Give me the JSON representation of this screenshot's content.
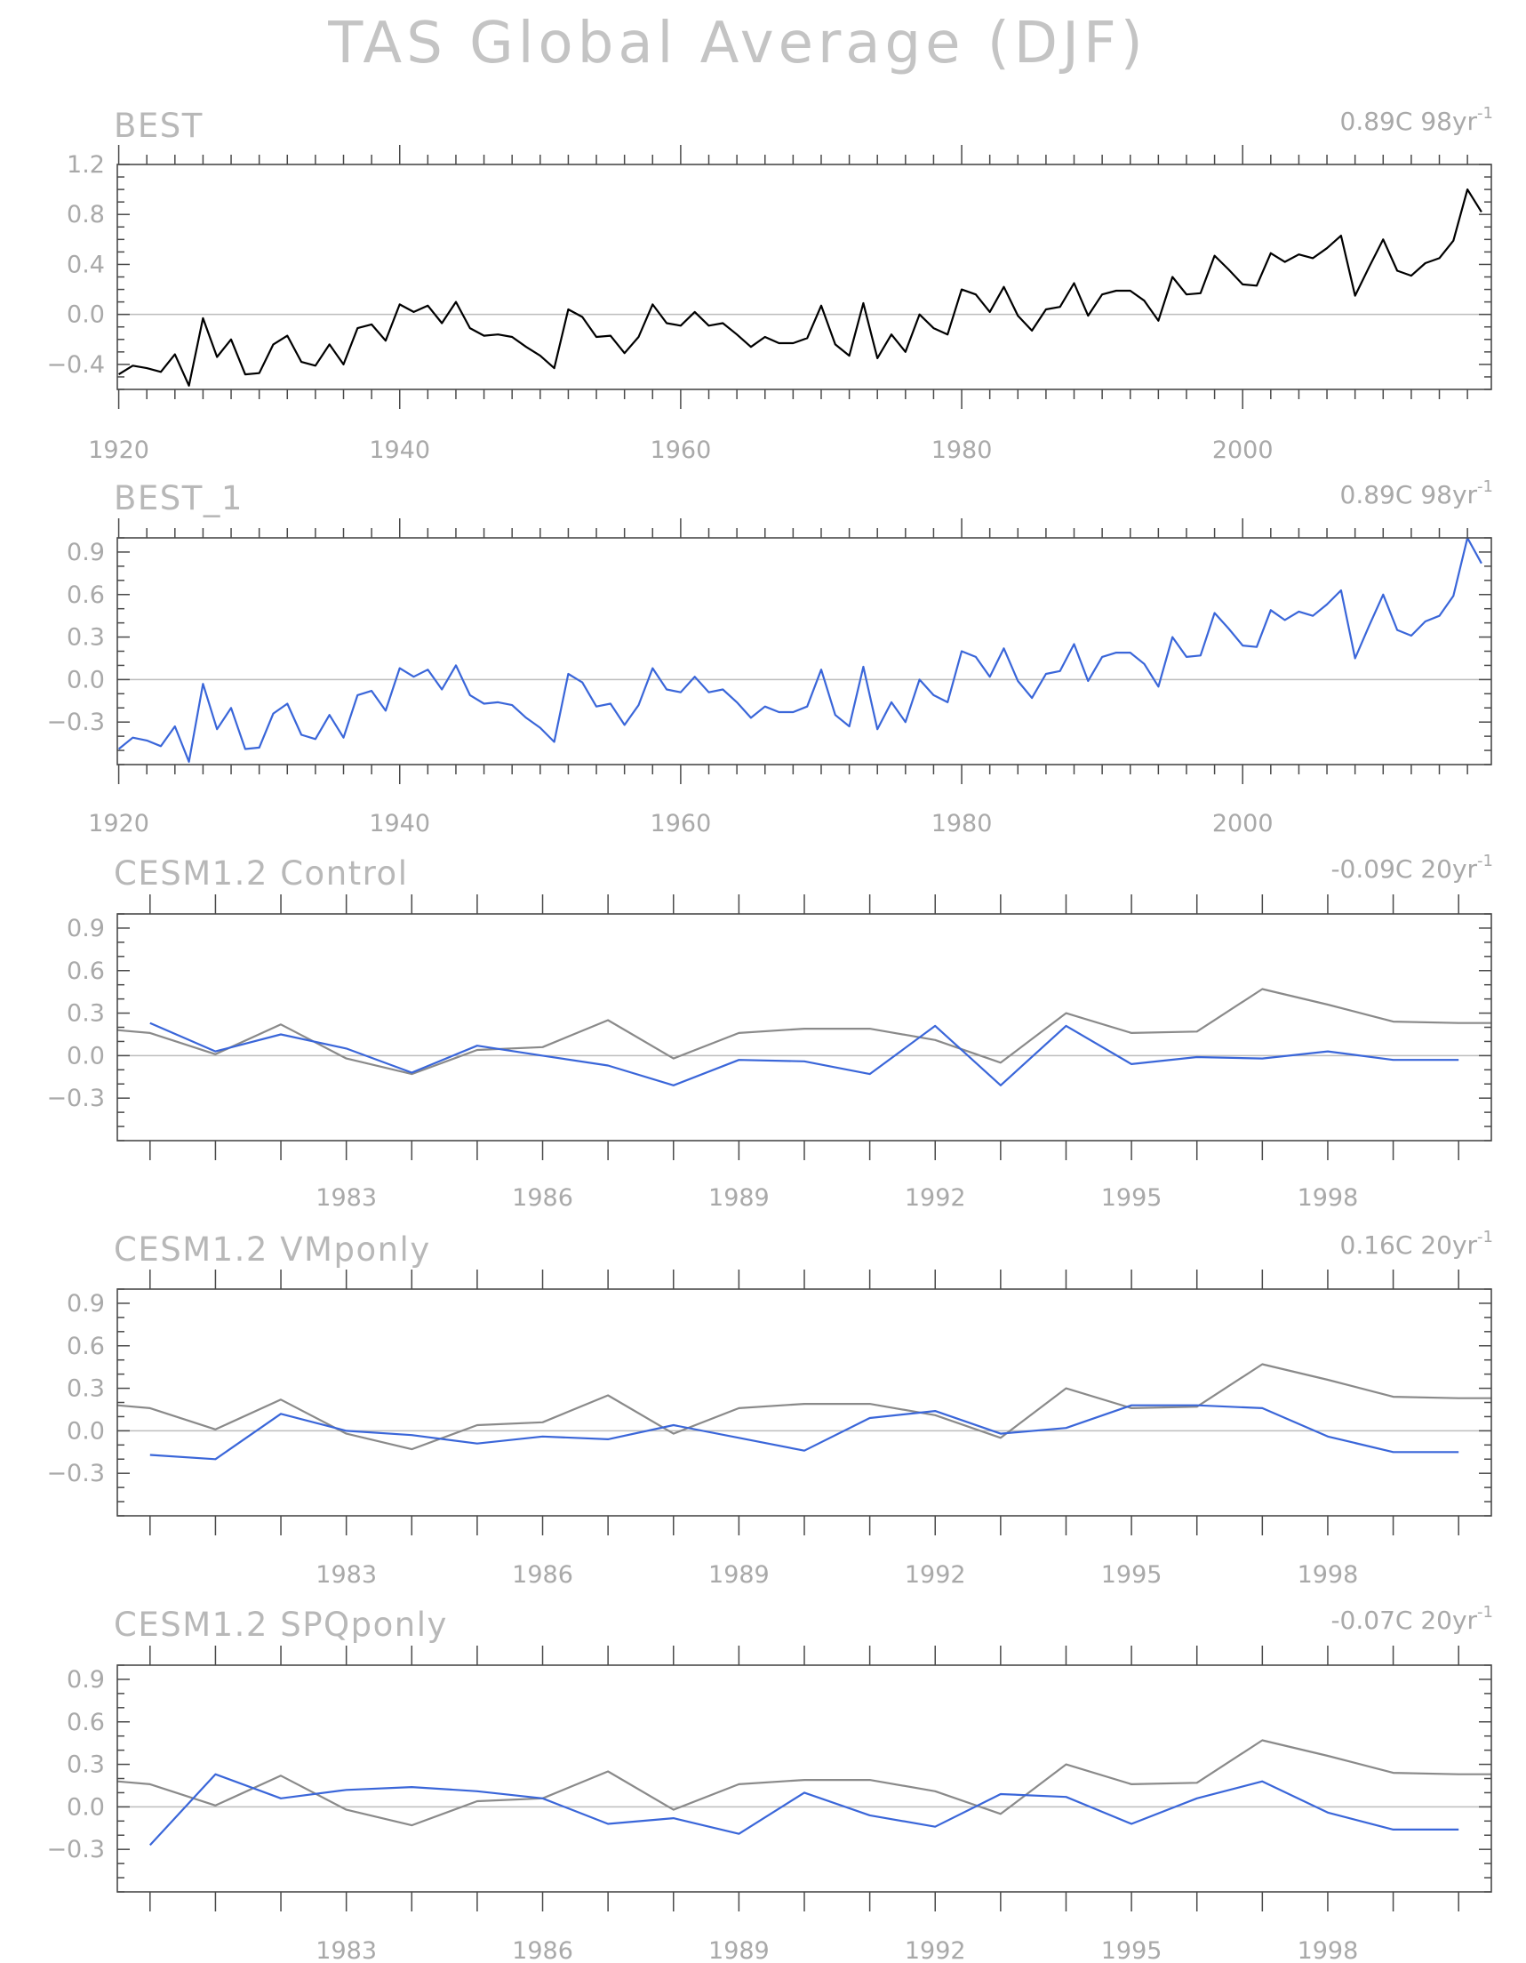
{
  "title": "TAS Global Average (DJF)",
  "colors": {
    "frame": "#4a4a4a",
    "zero_line": "#bdbdbd",
    "observed_black": "#000000",
    "observed_gray": "#8a8a8a",
    "model_blue": "#3a66d9",
    "text": "#a9a9a9"
  },
  "chart_data": [
    {
      "type": "line",
      "title": "BEST",
      "trend": "0.89C 98yr",
      "trend_unit_exponent": "-1",
      "x_range": [
        1919.9,
        2017.7
      ],
      "ylim": [
        -0.6,
        1.2
      ],
      "yticks": [
        -0.4,
        0.0,
        0.4,
        0.8,
        1.2
      ],
      "ytick_labels": [
        "-0.4",
        "0.0",
        "0.4",
        "0.8",
        "1.2"
      ],
      "xticks": [
        1920,
        1940,
        1960,
        1980,
        2000
      ],
      "xtick_labels": [
        "1920",
        "1940",
        "1960",
        "1980",
        "2000"
      ],
      "x_minor_step": 2,
      "y_minor_step": 0.1,
      "series": [
        {
          "color": "#000000",
          "x_start": 1920,
          "values": [
            -0.48,
            -0.41,
            -0.43,
            -0.46,
            -0.32,
            -0.57,
            -0.03,
            -0.34,
            -0.2,
            -0.48,
            -0.47,
            -0.24,
            -0.17,
            -0.38,
            -0.41,
            -0.24,
            -0.4,
            -0.11,
            -0.08,
            -0.21,
            0.08,
            0.02,
            0.07,
            -0.07,
            0.1,
            -0.11,
            -0.17,
            -0.16,
            -0.18,
            -0.26,
            -0.33,
            -0.43,
            0.04,
            -0.02,
            -0.18,
            -0.17,
            -0.31,
            -0.18,
            0.08,
            -0.07,
            -0.09,
            0.02,
            -0.09,
            -0.07,
            -0.16,
            -0.26,
            -0.18,
            -0.23,
            -0.23,
            -0.19,
            0.07,
            -0.24,
            -0.33,
            0.09,
            -0.35,
            -0.16,
            -0.3,
            0.0,
            -0.11,
            -0.16,
            0.2,
            0.16,
            0.02,
            0.22,
            -0.01,
            -0.13,
            0.04,
            0.06,
            0.25,
            -0.01,
            0.16,
            0.19,
            0.19,
            0.11,
            -0.05,
            0.3,
            0.16,
            0.17,
            0.47,
            0.36,
            0.24,
            0.23,
            0.49,
            0.42,
            0.48,
            0.45,
            0.53,
            0.63,
            0.15,
            0.38,
            0.6,
            0.35,
            0.31,
            0.41,
            0.45,
            0.59,
            1.0,
            0.82
          ]
        }
      ]
    },
    {
      "type": "line",
      "title": "BEST_1",
      "trend": "0.89C 98yr",
      "trend_unit_exponent": "-1",
      "x_range": [
        1919.9,
        2017.7
      ],
      "ylim": [
        -0.6,
        1.0
      ],
      "yticks": [
        -0.3,
        0.0,
        0.3,
        0.6,
        0.9
      ],
      "ytick_labels": [
        "-0.3",
        "0.0",
        "0.3",
        "0.6",
        "0.9"
      ],
      "xticks": [
        1920,
        1940,
        1960,
        1980,
        2000
      ],
      "xtick_labels": [
        "1920",
        "1940",
        "1960",
        "1980",
        "2000"
      ],
      "x_minor_step": 2,
      "y_minor_step": 0.1,
      "series": [
        {
          "color": "#3a66d9",
          "x_start": 1920,
          "values": [
            -0.49,
            -0.41,
            -0.43,
            -0.47,
            -0.33,
            -0.58,
            -0.03,
            -0.35,
            -0.2,
            -0.49,
            -0.48,
            -0.24,
            -0.17,
            -0.39,
            -0.42,
            -0.25,
            -0.41,
            -0.11,
            -0.08,
            -0.22,
            0.08,
            0.02,
            0.07,
            -0.07,
            0.1,
            -0.11,
            -0.17,
            -0.16,
            -0.18,
            -0.27,
            -0.34,
            -0.44,
            0.04,
            -0.02,
            -0.19,
            -0.17,
            -0.32,
            -0.18,
            0.08,
            -0.07,
            -0.09,
            0.02,
            -0.09,
            -0.07,
            -0.16,
            -0.27,
            -0.19,
            -0.23,
            -0.23,
            -0.19,
            0.07,
            -0.25,
            -0.33,
            0.09,
            -0.35,
            -0.16,
            -0.3,
            0.0,
            -0.11,
            -0.16,
            0.2,
            0.16,
            0.02,
            0.22,
            -0.01,
            -0.13,
            0.04,
            0.06,
            0.25,
            -0.01,
            0.16,
            0.19,
            0.19,
            0.11,
            -0.05,
            0.3,
            0.16,
            0.17,
            0.47,
            0.36,
            0.24,
            0.23,
            0.49,
            0.42,
            0.48,
            0.45,
            0.53,
            0.63,
            0.15,
            0.38,
            0.6,
            0.35,
            0.31,
            0.41,
            0.45,
            0.59,
            1.0,
            0.82
          ]
        }
      ]
    },
    {
      "type": "line",
      "title": "CESM1.2 Control",
      "trend": "-0.09C 20yr",
      "trend_unit_exponent": "-1",
      "x_range": [
        1979.5,
        2000.5
      ],
      "ylim": [
        -0.6,
        1.0
      ],
      "yticks": [
        -0.3,
        0.0,
        0.3,
        0.6,
        0.9
      ],
      "ytick_labels": [
        "-0.3",
        "0.0",
        "0.3",
        "0.6",
        "0.9"
      ],
      "xticks": [
        1983,
        1986,
        1989,
        1992,
        1995,
        1998
      ],
      "xtick_labels": [
        "1983",
        "1986",
        "1989",
        "1992",
        "1995",
        "1998"
      ],
      "x_major_step": 1,
      "y_minor_step": 0.1,
      "series": [
        {
          "color": "#8a8a8a",
          "x": [
            1979.5,
            1980,
            1981,
            1982,
            1983,
            1984,
            1985,
            1986,
            1987,
            1988,
            1989,
            1990,
            1991,
            1992,
            1993,
            1994,
            1995,
            1996,
            1997,
            1998,
            1999,
            2000,
            2000.5
          ],
          "values": [
            0.18,
            0.16,
            0.01,
            0.22,
            -0.02,
            -0.13,
            0.04,
            0.06,
            0.25,
            -0.02,
            0.16,
            0.19,
            0.19,
            0.11,
            -0.05,
            0.3,
            0.16,
            0.17,
            0.47,
            0.36,
            0.24,
            0.23,
            0.23
          ]
        },
        {
          "color": "#3a66d9",
          "x": [
            1980,
            1981,
            1982,
            1983,
            1984,
            1985,
            1986,
            1987,
            1988,
            1989,
            1990,
            1991,
            1992,
            1993,
            1994,
            1995,
            1996,
            1997,
            1998,
            1999,
            2000
          ],
          "values": [
            0.23,
            0.03,
            0.15,
            0.05,
            -0.12,
            0.07,
            0.0,
            -0.07,
            -0.21,
            -0.03,
            -0.04,
            -0.13,
            0.21,
            -0.21,
            0.21,
            -0.06,
            -0.01,
            -0.02,
            0.03,
            -0.03,
            -0.03
          ]
        }
      ]
    },
    {
      "type": "line",
      "title": "CESM1.2 VMponly",
      "trend": "0.16C 20yr",
      "trend_unit_exponent": "-1",
      "x_range": [
        1979.5,
        2000.5
      ],
      "ylim": [
        -0.6,
        1.0
      ],
      "yticks": [
        -0.3,
        0.0,
        0.3,
        0.6,
        0.9
      ],
      "ytick_labels": [
        "-0.3",
        "0.0",
        "0.3",
        "0.6",
        "0.9"
      ],
      "xticks": [
        1983,
        1986,
        1989,
        1992,
        1995,
        1998
      ],
      "xtick_labels": [
        "1983",
        "1986",
        "1989",
        "1992",
        "1995",
        "1998"
      ],
      "x_major_step": 1,
      "y_minor_step": 0.1,
      "series": [
        {
          "color": "#8a8a8a",
          "x": [
            1979.5,
            1980,
            1981,
            1982,
            1983,
            1984,
            1985,
            1986,
            1987,
            1988,
            1989,
            1990,
            1991,
            1992,
            1993,
            1994,
            1995,
            1996,
            1997,
            1998,
            1999,
            2000,
            2000.5
          ],
          "values": [
            0.18,
            0.16,
            0.01,
            0.22,
            -0.02,
            -0.13,
            0.04,
            0.06,
            0.25,
            -0.02,
            0.16,
            0.19,
            0.19,
            0.11,
            -0.05,
            0.3,
            0.16,
            0.17,
            0.47,
            0.36,
            0.24,
            0.23,
            0.23
          ]
        },
        {
          "color": "#3a66d9",
          "x": [
            1980,
            1981,
            1982,
            1983,
            1984,
            1985,
            1986,
            1987,
            1988,
            1989,
            1990,
            1991,
            1992,
            1993,
            1994,
            1995,
            1996,
            1997,
            1998,
            1999,
            2000
          ],
          "values": [
            -0.17,
            -0.2,
            0.12,
            0.0,
            -0.03,
            -0.09,
            -0.04,
            -0.06,
            0.04,
            -0.05,
            -0.14,
            0.09,
            0.14,
            -0.02,
            0.02,
            0.18,
            0.18,
            0.16,
            -0.04,
            -0.15,
            -0.15
          ]
        }
      ]
    },
    {
      "type": "line",
      "title": "CESM1.2 SPQponly",
      "trend": "-0.07C 20yr",
      "trend_unit_exponent": "-1",
      "x_range": [
        1979.5,
        2000.5
      ],
      "ylim": [
        -0.6,
        1.0
      ],
      "yticks": [
        -0.3,
        0.0,
        0.3,
        0.6,
        0.9
      ],
      "ytick_labels": [
        "-0.3",
        "0.0",
        "0.3",
        "0.6",
        "0.9"
      ],
      "xticks": [
        1983,
        1986,
        1989,
        1992,
        1995,
        1998
      ],
      "xtick_labels": [
        "1983",
        "1986",
        "1989",
        "1992",
        "1995",
        "1998"
      ],
      "x_major_step": 1,
      "y_minor_step": 0.1,
      "series": [
        {
          "color": "#8a8a8a",
          "x": [
            1979.5,
            1980,
            1981,
            1982,
            1983,
            1984,
            1985,
            1986,
            1987,
            1988,
            1989,
            1990,
            1991,
            1992,
            1993,
            1994,
            1995,
            1996,
            1997,
            1998,
            1999,
            2000,
            2000.5
          ],
          "values": [
            0.18,
            0.16,
            0.01,
            0.22,
            -0.02,
            -0.13,
            0.04,
            0.06,
            0.25,
            -0.02,
            0.16,
            0.19,
            0.19,
            0.11,
            -0.05,
            0.3,
            0.16,
            0.17,
            0.47,
            0.36,
            0.24,
            0.23,
            0.23
          ]
        },
        {
          "color": "#3a66d9",
          "x": [
            1980,
            1981,
            1982,
            1983,
            1984,
            1985,
            1986,
            1987,
            1988,
            1989,
            1990,
            1991,
            1992,
            1993,
            1994,
            1995,
            1996,
            1997,
            1998,
            1999,
            2000
          ],
          "values": [
            -0.27,
            0.23,
            0.06,
            0.12,
            0.14,
            0.11,
            0.06,
            -0.12,
            -0.08,
            -0.19,
            0.1,
            -0.06,
            -0.14,
            0.09,
            0.07,
            -0.12,
            0.06,
            0.18,
            -0.04,
            -0.16,
            -0.16
          ]
        }
      ]
    }
  ]
}
